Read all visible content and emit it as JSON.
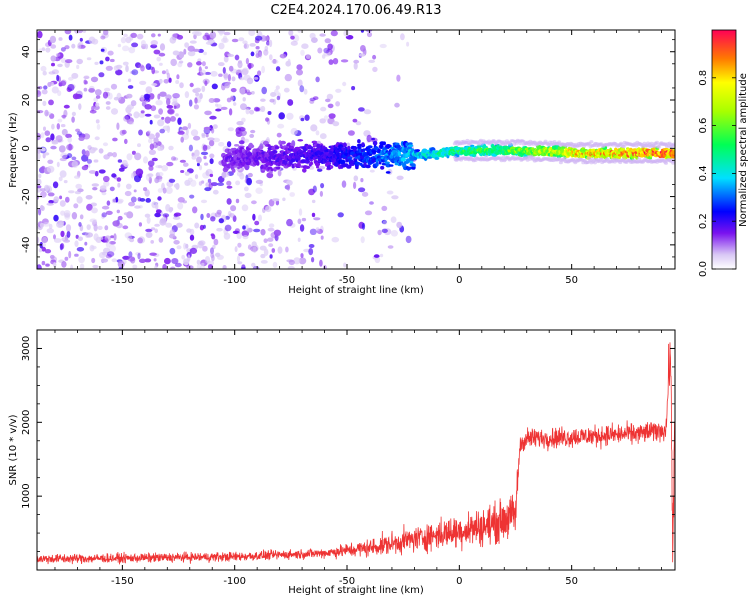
{
  "title": "C2E4.2024.170.06.49.R13",
  "chart_data": [
    {
      "type": "heatmap",
      "xlabel": "Height of straight line (km)",
      "ylabel": "Frequency (Hz)",
      "xlim": [
        -188,
        96
      ],
      "ylim": [
        -50,
        49
      ],
      "x_ticks": [
        -150,
        -100,
        -50,
        0,
        50
      ],
      "y_ticks": [
        -40,
        -20,
        0,
        20,
        40
      ],
      "colorbar": {
        "label": "Normalized spectral amplitude",
        "range": [
          0,
          1
        ],
        "ticks": [
          0.0,
          0.2,
          0.4,
          0.6,
          0.8
        ]
      },
      "ridge": {
        "description_points": [
          {
            "x": -100,
            "y": -4,
            "amp": 0.15
          },
          {
            "x": -60,
            "y": -3,
            "amp": 0.2
          },
          {
            "x": -35,
            "y": -3,
            "amp": 0.3
          },
          {
            "x": -20,
            "y": -3,
            "amp": 0.38
          },
          {
            "x": 0,
            "y": -1,
            "amp": 0.5
          },
          {
            "x": 25,
            "y": -1,
            "amp": 0.6
          },
          {
            "x": 55,
            "y": -2,
            "amp": 0.8
          },
          {
            "x": 94,
            "y": -2,
            "amp": 0.95
          }
        ]
      },
      "grid": false
    },
    {
      "type": "line",
      "xlabel": "Height of straight line (km)",
      "ylabel": "SNR (10 * v/v)",
      "xlim": [
        -188,
        96
      ],
      "ylim": [
        0,
        3250
      ],
      "x_ticks": [
        -150,
        -100,
        -50,
        0,
        50
      ],
      "y_ticks": [
        1000,
        2000,
        3000
      ],
      "series": [
        {
          "color": "#ee3333",
          "profile": [
            {
              "x": -188,
              "y": 150
            },
            {
              "x": -150,
              "y": 160
            },
            {
              "x": -100,
              "y": 180
            },
            {
              "x": -60,
              "y": 230
            },
            {
              "x": -40,
              "y": 300
            },
            {
              "x": -20,
              "y": 420
            },
            {
              "x": 0,
              "y": 530
            },
            {
              "x": 15,
              "y": 620
            },
            {
              "x": 25,
              "y": 750
            },
            {
              "x": 27,
              "y": 1700
            },
            {
              "x": 30,
              "y": 1780
            },
            {
              "x": 50,
              "y": 1800
            },
            {
              "x": 80,
              "y": 1850
            },
            {
              "x": 92,
              "y": 1900
            },
            {
              "x": 94,
              "y": 3050
            },
            {
              "x": 95,
              "y": 200
            },
            {
              "x": 96,
              "y": 2500
            }
          ]
        }
      ],
      "grid": false
    }
  ]
}
